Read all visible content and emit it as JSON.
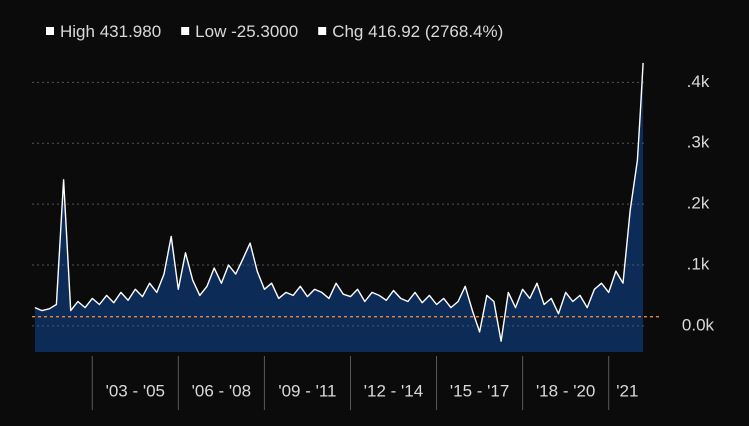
{
  "chart_data": {
    "type": "area",
    "legend_items": [
      {
        "label": "High",
        "value": "431.980"
      },
      {
        "label": "Low",
        "value": "-25.3000"
      },
      {
        "label": "Chg",
        "value": "416.92 (2768.4%)"
      }
    ],
    "x": [
      2001,
      2001.25,
      2001.5,
      2001.75,
      2002,
      2002.25,
      2002.5,
      2002.75,
      2003,
      2003.25,
      2003.5,
      2003.75,
      2004,
      2004.25,
      2004.5,
      2004.75,
      2005,
      2005.25,
      2005.5,
      2005.75,
      2006,
      2006.25,
      2006.5,
      2006.75,
      2007,
      2007.25,
      2007.5,
      2007.75,
      2008,
      2008.25,
      2008.5,
      2008.75,
      2009,
      2009.25,
      2009.5,
      2009.75,
      2010,
      2010.25,
      2010.5,
      2010.75,
      2011,
      2011.25,
      2011.5,
      2011.75,
      2012,
      2012.25,
      2012.5,
      2012.75,
      2013,
      2013.25,
      2013.5,
      2013.75,
      2014,
      2014.25,
      2014.5,
      2014.75,
      2015,
      2015.25,
      2015.5,
      2015.75,
      2016,
      2016.25,
      2016.5,
      2016.75,
      2017,
      2017.25,
      2017.5,
      2017.75,
      2018,
      2018.25,
      2018.5,
      2018.75,
      2019,
      2019.25,
      2019.5,
      2019.75,
      2020,
      2020.25,
      2020.5,
      2020.75,
      2021,
      2021.25,
      2021.5,
      2021.75,
      2022,
      2022.1,
      2022.2
    ],
    "values": [
      30,
      25,
      28,
      35,
      240,
      25,
      40,
      30,
      45,
      35,
      50,
      38,
      55,
      42,
      60,
      48,
      70,
      55,
      85,
      147,
      60,
      120,
      75,
      50,
      65,
      95,
      70,
      100,
      85,
      110,
      136,
      90,
      60,
      70,
      45,
      55,
      50,
      65,
      48,
      60,
      55,
      45,
      70,
      52,
      48,
      60,
      40,
      55,
      50,
      42,
      58,
      45,
      40,
      55,
      38,
      50,
      35,
      45,
      30,
      40,
      65,
      25,
      -10,
      50,
      40,
      -25.3,
      55,
      30,
      60,
      45,
      70,
      35,
      45,
      20,
      55,
      40,
      50,
      30,
      60,
      70,
      55,
      90,
      70,
      190,
      272,
      350,
      431.98
    ],
    "line_color": "#ffffff",
    "fill_color": "#0d2b57",
    "xlim": [
      2000.9,
      2022.3
    ],
    "ylim": [
      -43,
      445
    ],
    "yticks": [
      {
        "value": 0,
        "label": "0.0k"
      },
      {
        "value": 100,
        "label": ".1k"
      },
      {
        "value": 200,
        "label": ".2k"
      },
      {
        "value": 300,
        "label": ".3k"
      },
      {
        "value": 400,
        "label": ".4k"
      }
    ],
    "grid": true,
    "reference_line": {
      "value": 15.06,
      "color": "#e8883a"
    },
    "x_periods": [
      {
        "label": "'03 - '05",
        "start": 2003,
        "end": 2006
      },
      {
        "label": "'06 - '08",
        "start": 2006,
        "end": 2009
      },
      {
        "label": "'09 - '11",
        "start": 2009,
        "end": 2012
      },
      {
        "label": "'12 - '14",
        "start": 2012,
        "end": 2015
      },
      {
        "label": "'15 - '17",
        "start": 2015,
        "end": 2018
      },
      {
        "label": "'18 - '20",
        "start": 2018,
        "end": 2021
      },
      {
        "label": "'21",
        "start": 2021,
        "end": 2022.3
      }
    ]
  }
}
